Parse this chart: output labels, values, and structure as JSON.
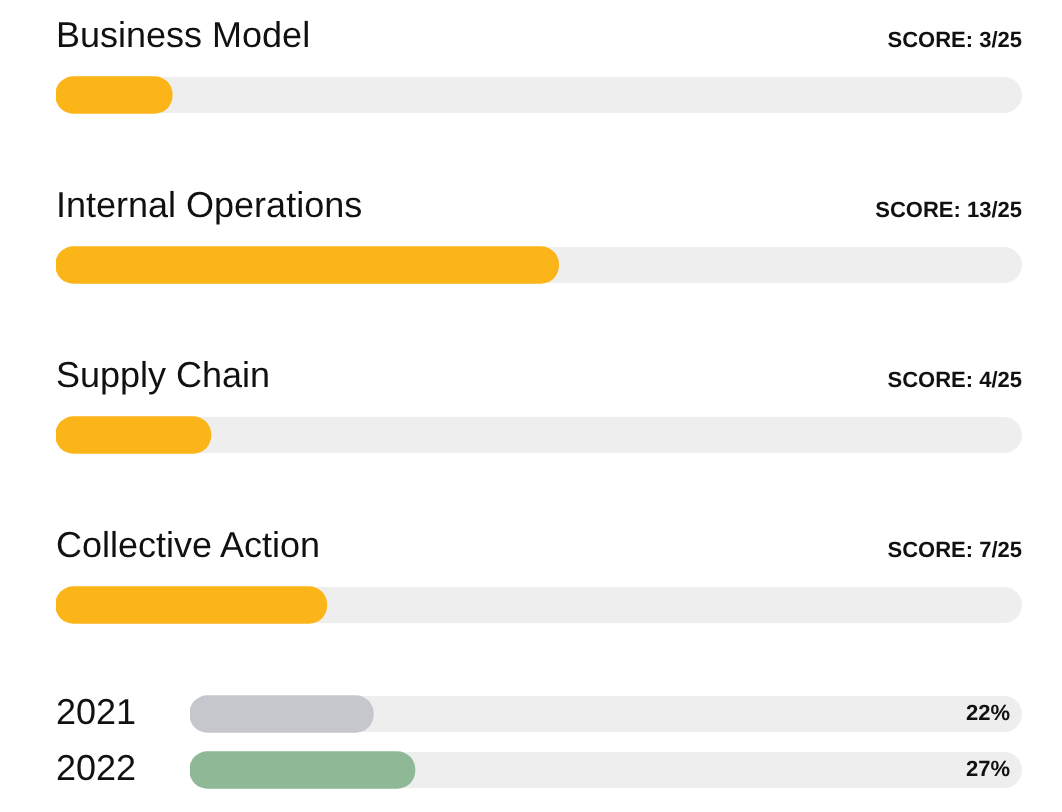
{
  "chart_data": [
    {
      "type": "bar",
      "orientation": "horizontal",
      "categories": [
        "Business Model",
        "Internal Operations",
        "Supply Chain",
        "Collective Action"
      ],
      "values": [
        3,
        13,
        4,
        7
      ],
      "color": "#fbb518",
      "xlim": [
        0,
        25
      ],
      "value_labels": [
        "SCORE: 3/25",
        "SCORE: 13/25",
        "SCORE: 4/25",
        "SCORE: 7/25"
      ],
      "tick_labels": "y"
    },
    {
      "type": "bar",
      "orientation": "horizontal",
      "categories": [
        "2021",
        "2022"
      ],
      "values": [
        22,
        27
      ],
      "colors": [
        "#c5c7cc",
        "#8fb996"
      ],
      "xlim": [
        0,
        100
      ],
      "value_labels": [
        "22%",
        "27%"
      ],
      "tick_labels": "y"
    }
  ]
}
